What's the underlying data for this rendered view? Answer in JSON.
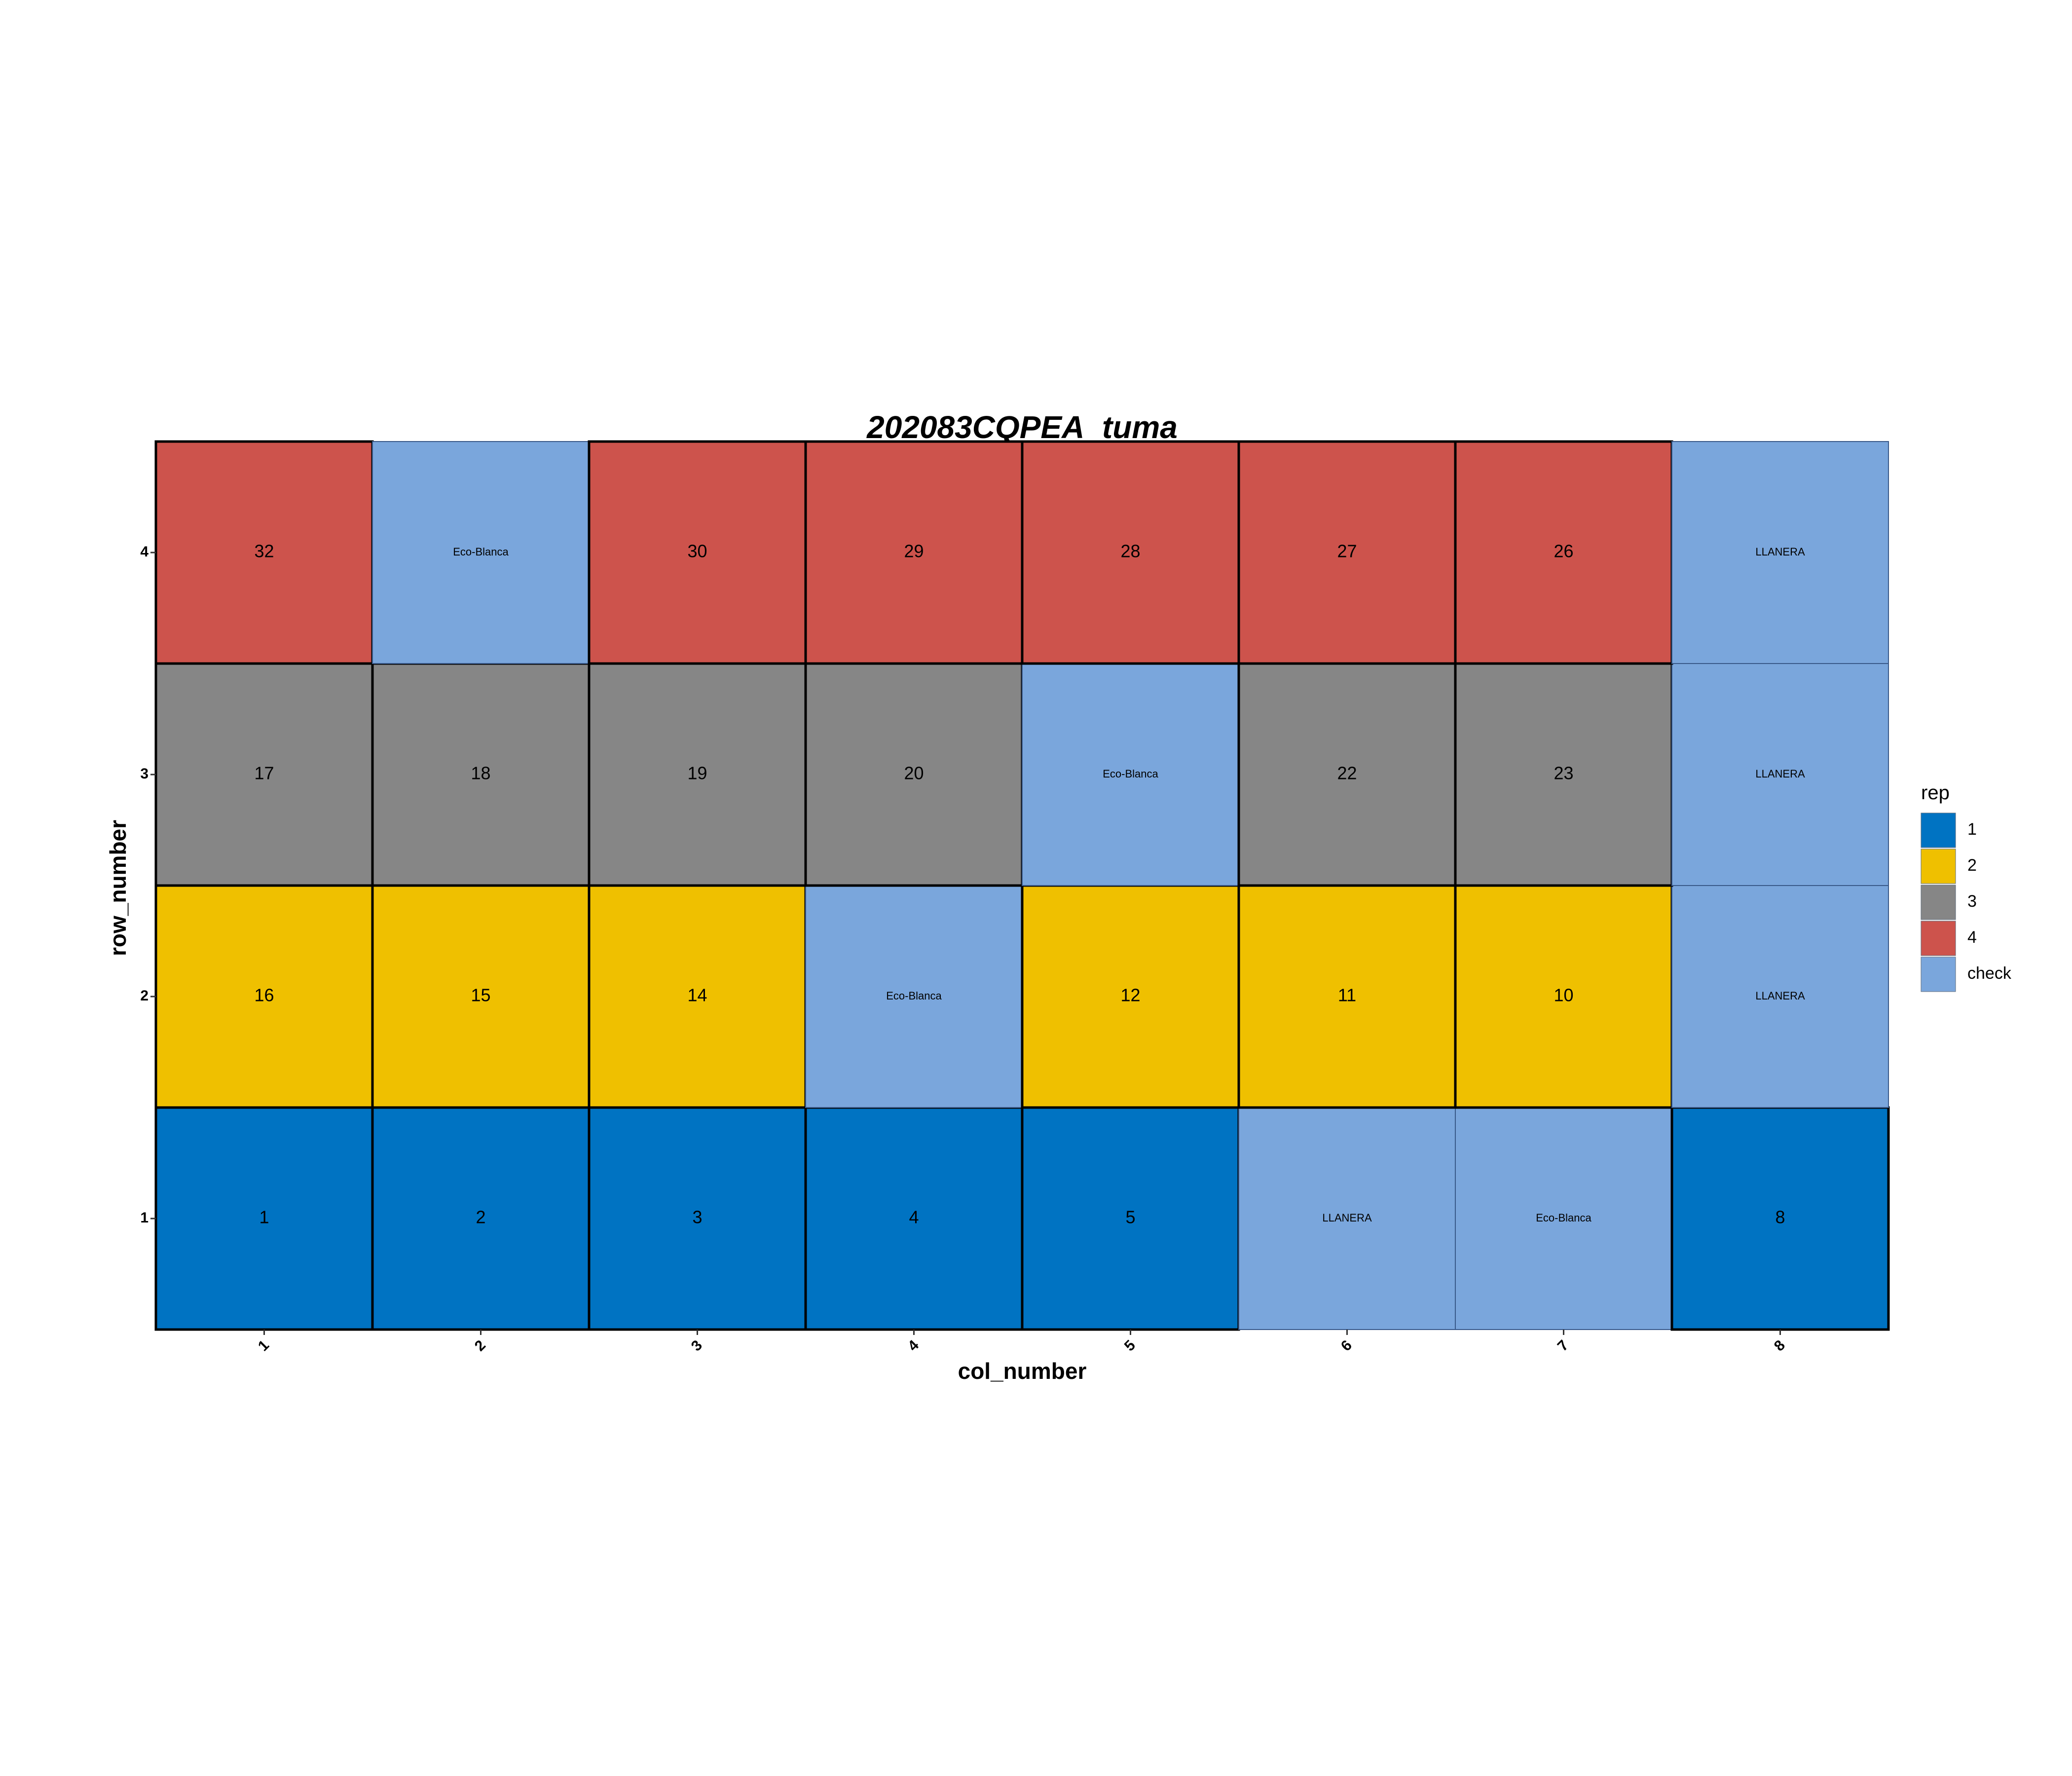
{
  "chart_data": {
    "type": "heatmap",
    "title": "202083CQPEA_tuma",
    "xlabel": "col_number",
    "ylabel": "row_number",
    "x_ticks": [
      "1",
      "2",
      "3",
      "4",
      "5",
      "6",
      "7",
      "8"
    ],
    "y_ticks": [
      "1",
      "2",
      "3",
      "4"
    ],
    "xlim": [
      0.5,
      8.5
    ],
    "ylim": [
      0.5,
      4.5
    ],
    "legend": {
      "title": "rep",
      "position": "right",
      "entries": [
        {
          "label": "1",
          "color": "#0073c2"
        },
        {
          "label": "2",
          "color": "#efc000"
        },
        {
          "label": "3",
          "color": "#868686"
        },
        {
          "label": "4",
          "color": "#cd534c"
        },
        {
          "label": "check",
          "color": "#7aa6dc"
        }
      ]
    },
    "cells": [
      {
        "col": 1,
        "row": 1,
        "rep": "1",
        "label": "1"
      },
      {
        "col": 2,
        "row": 1,
        "rep": "1",
        "label": "2"
      },
      {
        "col": 3,
        "row": 1,
        "rep": "1",
        "label": "3"
      },
      {
        "col": 4,
        "row": 1,
        "rep": "1",
        "label": "4"
      },
      {
        "col": 5,
        "row": 1,
        "rep": "1",
        "label": "5"
      },
      {
        "col": 6,
        "row": 1,
        "rep": "check",
        "label": "LLANERA"
      },
      {
        "col": 7,
        "row": 1,
        "rep": "check",
        "label": "Eco-Blanca"
      },
      {
        "col": 8,
        "row": 1,
        "rep": "1",
        "label": "8"
      },
      {
        "col": 1,
        "row": 2,
        "rep": "2",
        "label": "16"
      },
      {
        "col": 2,
        "row": 2,
        "rep": "2",
        "label": "15"
      },
      {
        "col": 3,
        "row": 2,
        "rep": "2",
        "label": "14"
      },
      {
        "col": 4,
        "row": 2,
        "rep": "check",
        "label": "Eco-Blanca"
      },
      {
        "col": 5,
        "row": 2,
        "rep": "2",
        "label": "12"
      },
      {
        "col": 6,
        "row": 2,
        "rep": "2",
        "label": "11"
      },
      {
        "col": 7,
        "row": 2,
        "rep": "2",
        "label": "10"
      },
      {
        "col": 8,
        "row": 2,
        "rep": "check",
        "label": "LLANERA"
      },
      {
        "col": 1,
        "row": 3,
        "rep": "3",
        "label": "17"
      },
      {
        "col": 2,
        "row": 3,
        "rep": "3",
        "label": "18"
      },
      {
        "col": 3,
        "row": 3,
        "rep": "3",
        "label": "19"
      },
      {
        "col": 4,
        "row": 3,
        "rep": "3",
        "label": "20"
      },
      {
        "col": 5,
        "row": 3,
        "rep": "check",
        "label": "Eco-Blanca"
      },
      {
        "col": 6,
        "row": 3,
        "rep": "3",
        "label": "22"
      },
      {
        "col": 7,
        "row": 3,
        "rep": "3",
        "label": "23"
      },
      {
        "col": 8,
        "row": 3,
        "rep": "check",
        "label": "LLANERA"
      },
      {
        "col": 1,
        "row": 4,
        "rep": "4",
        "label": "32"
      },
      {
        "col": 2,
        "row": 4,
        "rep": "check",
        "label": "Eco-Blanca"
      },
      {
        "col": 3,
        "row": 4,
        "rep": "4",
        "label": "30"
      },
      {
        "col": 4,
        "row": 4,
        "rep": "4",
        "label": "29"
      },
      {
        "col": 5,
        "row": 4,
        "rep": "4",
        "label": "28"
      },
      {
        "col": 6,
        "row": 4,
        "rep": "4",
        "label": "27"
      },
      {
        "col": 7,
        "row": 4,
        "rep": "4",
        "label": "26"
      },
      {
        "col": 8,
        "row": 4,
        "rep": "check",
        "label": "LLANERA"
      }
    ]
  }
}
